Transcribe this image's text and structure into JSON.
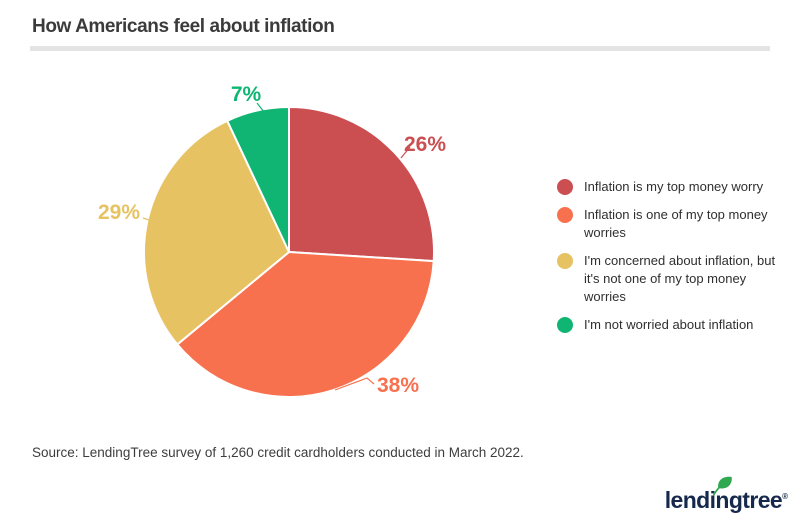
{
  "header": {
    "title": "How Americans feel about inflation"
  },
  "chart_data": {
    "type": "pie",
    "title": "How Americans feel about inflation",
    "unit": "%",
    "start_angle_deg": 0,
    "direction": "clockwise",
    "legend_position": "right",
    "categories": [
      "Inflation is my top money worry",
      "Inflation is one of my top money worries",
      "I'm concerned about inflation, but it's not one of my top money worries",
      "I'm not worried about inflation"
    ],
    "values": [
      26,
      38,
      29,
      7
    ],
    "value_labels": [
      "26%",
      "38%",
      "29%",
      "7%"
    ],
    "colors": [
      "#CB4E51",
      "#F8714E",
      "#E6C262",
      "#10B573"
    ]
  },
  "footer": {
    "source": "Source: LendingTree survey of 1,260 credit cardholders conducted in March 2022."
  },
  "brand": {
    "logo_text": "lendingtree",
    "registered_mark": "®",
    "leaf_icon": "leaf-icon",
    "logo_color": "#16294c",
    "leaf_color": "#2FA84F"
  }
}
